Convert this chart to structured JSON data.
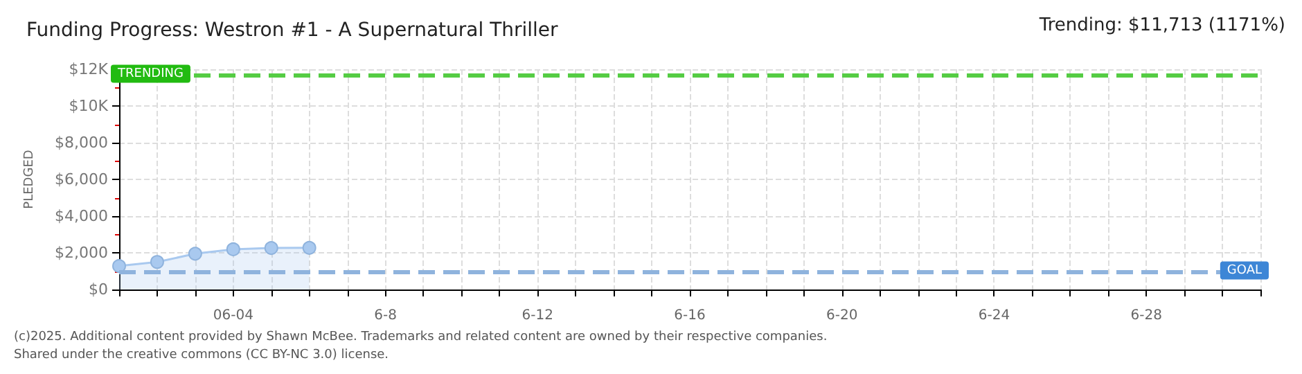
{
  "chart_data": {
    "type": "area",
    "title": "Funding Progress: Westron #1 - A Supernatural Thriller",
    "subtitle": "Trending: $11,713 (1171%)",
    "ylabel": "PLEDGED",
    "annotations": [
      "(c)2025. Additional content provided by Shawn McBee. Trademarks and related content are owned by their respective companies.",
      "Shared under the creative commons (CC BY-NC 3.0) license."
    ],
    "categories": [
      null,
      null,
      null,
      "06-04",
      null,
      null,
      null,
      "6-8",
      null,
      null,
      null,
      "6-12",
      null,
      null,
      null,
      "6-16",
      null,
      null,
      null,
      "6-20",
      null,
      null,
      null,
      "6-24",
      null,
      null,
      null,
      "6-28",
      null,
      null,
      null
    ],
    "series": [
      {
        "color": "#a9c9ef",
        "values": [
          1280,
          1500,
          1950,
          2190,
          2260,
          2270,
          null,
          null,
          null,
          null,
          null,
          null,
          null,
          null,
          null,
          null,
          null,
          null,
          null,
          null,
          null,
          null,
          null,
          null,
          null,
          null,
          null,
          null,
          null,
          null,
          null
        ]
      }
    ],
    "ylim": [
      0,
      12000
    ],
    "yticks": [
      {
        "value": 0,
        "label": "$0"
      },
      {
        "value": 2000,
        "label": "$2,000"
      },
      {
        "value": 4000,
        "label": "$4,000"
      },
      {
        "value": 6000,
        "label": "$6,000"
      },
      {
        "value": 8000,
        "label": "$8,000"
      },
      {
        "value": 10000,
        "label": "$10K"
      },
      {
        "value": 12000,
        "label": "$12K"
      }
    ],
    "ref_lines": [
      {
        "axis": "y",
        "value": 11713,
        "label": "TRENDING",
        "color": "#55cc44",
        "line_style": "dashed"
      },
      {
        "axis": "y",
        "value": 1000,
        "label": "GOAL",
        "color": "#8fb3dd",
        "line_style": "dashed"
      }
    ],
    "grid": true,
    "marker": "circle"
  }
}
